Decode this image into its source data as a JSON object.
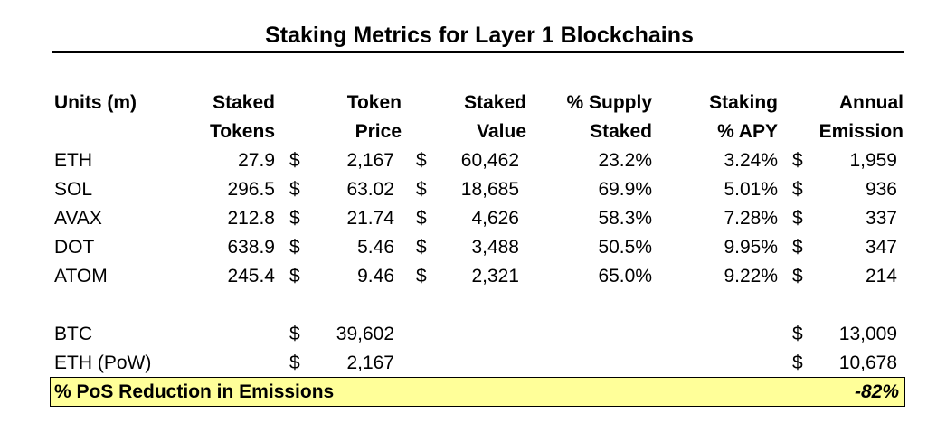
{
  "title": "Staking Metrics for Layer 1 Blockchains",
  "headers": {
    "units": "Units (m)",
    "staked_tokens": [
      "Staked",
      "Tokens"
    ],
    "token_price": [
      "Token",
      "Price"
    ],
    "staked_value": [
      "Staked",
      "Value"
    ],
    "supply_staked": [
      "% Supply",
      "Staked"
    ],
    "staking_apy": [
      "Staking",
      "% APY"
    ],
    "annual_emission": [
      "Annual",
      "Emission"
    ]
  },
  "currency_symbol": "$",
  "pos_rows": [
    {
      "name": "ETH",
      "staked_tokens": "27.9",
      "token_price": "2,167",
      "staked_value": "60,462",
      "supply_staked": "23.2%",
      "apy": "3.24%",
      "emission": "1,959"
    },
    {
      "name": "SOL",
      "staked_tokens": "296.5",
      "token_price": "63.02",
      "staked_value": "18,685",
      "supply_staked": "69.9%",
      "apy": "5.01%",
      "emission": "936"
    },
    {
      "name": "AVAX",
      "staked_tokens": "212.8",
      "token_price": "21.74",
      "staked_value": "4,626",
      "supply_staked": "58.3%",
      "apy": "7.28%",
      "emission": "337"
    },
    {
      "name": "DOT",
      "staked_tokens": "638.9",
      "token_price": "5.46",
      "staked_value": "3,488",
      "supply_staked": "50.5%",
      "apy": "9.95%",
      "emission": "347"
    },
    {
      "name": "ATOM",
      "staked_tokens": "245.4",
      "token_price": "9.46",
      "staked_value": "2,321",
      "supply_staked": "65.0%",
      "apy": "9.22%",
      "emission": "214"
    }
  ],
  "pow_rows": [
    {
      "name": "BTC",
      "token_price": "39,602",
      "emission": "13,009"
    },
    {
      "name": "ETH (PoW)",
      "token_price": "2,167",
      "emission": "10,678"
    }
  ],
  "summary": {
    "label": "% PoS Reduction in Emissions",
    "value": "-82%",
    "highlight_color": "#ffff99"
  }
}
